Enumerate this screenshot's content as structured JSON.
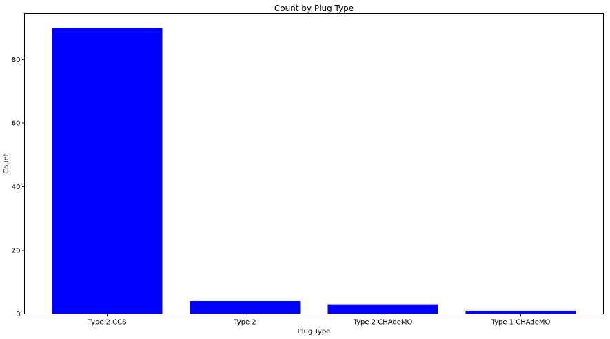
{
  "chart_data": {
    "type": "bar",
    "title": "Count by Plug Type",
    "xlabel": "Plug Type",
    "ylabel": "Count",
    "categories": [
      "Type 2 CCS",
      "Type 2",
      "Type 2 CHAdeMO",
      "Type 1 CHAdeMO"
    ],
    "values": [
      90,
      4,
      3,
      1
    ],
    "ylim": [
      0,
      94.5
    ],
    "yticks": [
      0,
      20,
      40,
      60,
      80
    ],
    "bar_color": "#0000ff",
    "grid": false,
    "legend": "none"
  }
}
